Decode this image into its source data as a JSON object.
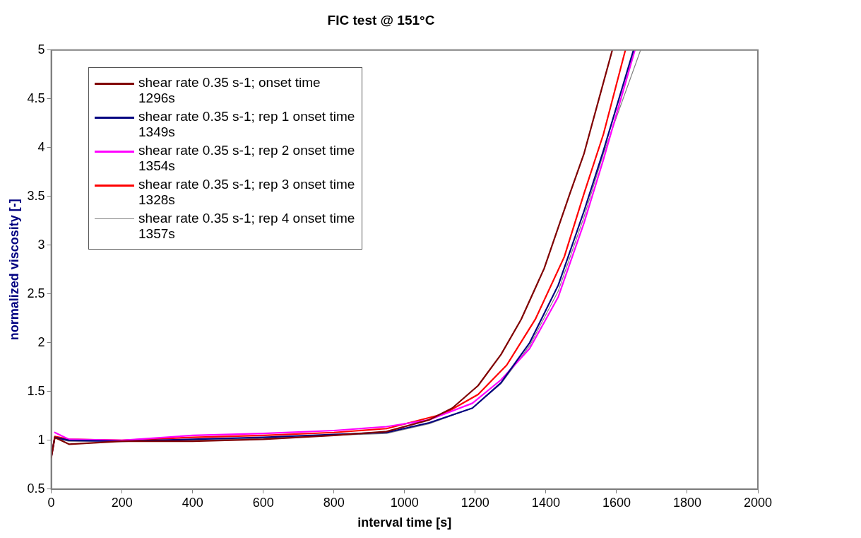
{
  "chart_data": {
    "type": "line",
    "title": "FIC test @ 151°C",
    "xlabel": "interval time [s]",
    "ylabel": "normalized viscosity [-]",
    "xlim": [
      0,
      2000
    ],
    "xticks": [
      0,
      200,
      400,
      600,
      800,
      1000,
      1200,
      1400,
      1600,
      1800,
      2000
    ],
    "ylim": [
      0.5,
      5
    ],
    "yticks": [
      0.5,
      1,
      1.5,
      2,
      2.5,
      3,
      3.5,
      4,
      4.5,
      5
    ],
    "legend": "top left",
    "series": [
      {
        "name": "shear rate 0.35 s-1; onset time 1296s",
        "color": "#800000",
        "x": [
          0,
          10,
          50,
          200,
          400,
          600,
          800,
          949,
          1070,
          1135,
          1208,
          1273,
          1330,
          1395,
          1468,
          1508,
          1563,
          1588
        ],
        "values": [
          0.82,
          1.03,
          0.96,
          0.99,
          0.99,
          1.01,
          1.05,
          1.09,
          1.21,
          1.33,
          1.56,
          1.88,
          2.24,
          2.76,
          3.53,
          3.94,
          4.67,
          5
        ]
      },
      {
        "name": "shear rate 0.35 s-1; rep 1 onset time 1349s",
        "color": "#000080",
        "x": [
          0,
          10,
          50,
          200,
          400,
          600,
          800,
          949,
          1070,
          1192,
          1273,
          1354,
          1435,
          1508,
          1563,
          1648
        ],
        "values": [
          0.83,
          1.03,
          1.0,
          0.99,
          1.01,
          1.03,
          1.06,
          1.08,
          1.18,
          1.33,
          1.59,
          2.0,
          2.59,
          3.35,
          3.97,
          5
        ]
      },
      {
        "name": "shear rate 0.35 s-1; rep 2 onset time 1354s",
        "color": "#ff00ff",
        "x": [
          10,
          50,
          200,
          400,
          600,
          800,
          949,
          1070,
          1192,
          1273,
          1354,
          1435,
          1508,
          1563,
          1652
        ],
        "values": [
          1.08,
          1.01,
          1.0,
          1.05,
          1.07,
          1.1,
          1.14,
          1.21,
          1.38,
          1.62,
          1.94,
          2.47,
          3.23,
          3.88,
          5
        ]
      },
      {
        "name": "shear rate 0.35 s-1; rep 3 onset time 1328s",
        "color": "#ff0000",
        "x": [
          0,
          10,
          50,
          200,
          400,
          600,
          800,
          949,
          1111,
          1208,
          1289,
          1370,
          1452,
          1508,
          1563,
          1625
        ],
        "values": [
          0.83,
          1.04,
          1.01,
          1.0,
          1.03,
          1.05,
          1.08,
          1.12,
          1.27,
          1.47,
          1.77,
          2.24,
          2.88,
          3.53,
          4.14,
          5
        ]
      },
      {
        "name": "shear rate 0.35 s-1; rep 4 onset time 1357s",
        "color": "#808080",
        "x": [
          0,
          10,
          50,
          200,
          400,
          600,
          800,
          949,
          1070,
          1192,
          1273,
          1354,
          1435,
          1508,
          1563,
          1668
        ],
        "values": [
          0.84,
          1.02,
          0.99,
          0.99,
          1.0,
          1.02,
          1.05,
          1.07,
          1.17,
          1.33,
          1.58,
          1.97,
          2.53,
          3.29,
          3.94,
          5
        ]
      }
    ]
  }
}
